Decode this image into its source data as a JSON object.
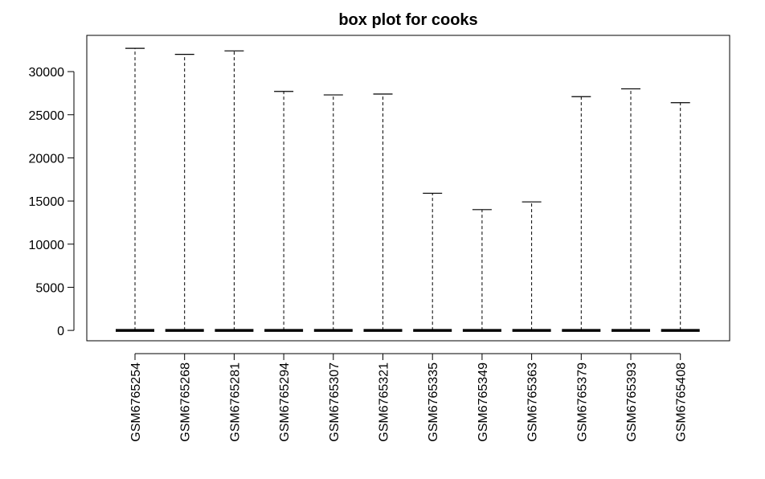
{
  "chart_data": {
    "type": "boxplot",
    "title": "box plot for cooks",
    "xlabel": "",
    "ylabel": "",
    "ylim": [
      -1200,
      34200
    ],
    "yticks": [
      0,
      5000,
      10000,
      15000,
      20000,
      25000,
      30000
    ],
    "grid": false,
    "categories": [
      "GSM6765254",
      "GSM6765268",
      "GSM6765281",
      "GSM6765294",
      "GSM6765307",
      "GSM6765321",
      "GSM6765335",
      "GSM6765349",
      "GSM6765363",
      "GSM6765379",
      "GSM6765393",
      "GSM6765408"
    ],
    "median": [
      0,
      0,
      0,
      0,
      0,
      0,
      0,
      0,
      0,
      0,
      0,
      0
    ],
    "max": [
      32700,
      32000,
      32400,
      27700,
      27300,
      27400,
      15900,
      14000,
      14900,
      27100,
      28000,
      26400
    ]
  }
}
